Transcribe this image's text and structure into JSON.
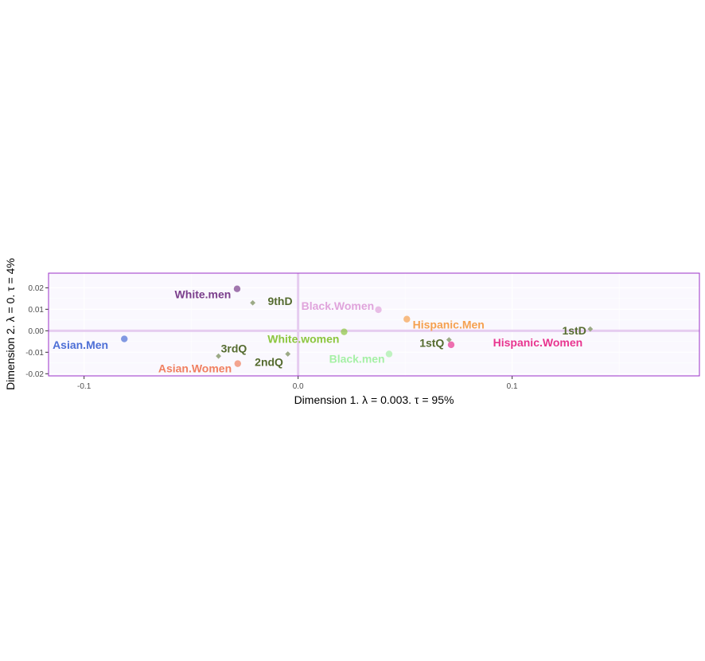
{
  "chart_data": {
    "type": "scatter",
    "title": "",
    "xlabel": "Dimension 1.   λ = 0.003.  τ = 95%",
    "ylabel": "Dimension 2.   λ = 0.  τ = 4%",
    "xlim": [
      -0.1166,
      0.1875
    ],
    "ylim": [
      -0.021,
      0.0268
    ],
    "x_ticks": [
      -0.1,
      0.0,
      0.1
    ],
    "x_tick_labels": [
      "-0.1",
      "0.0",
      "0.1"
    ],
    "y_ticks": [
      -0.02,
      -0.01,
      0.0,
      0.01,
      0.02
    ],
    "y_tick_labels": [
      "-0.02",
      "-0.01",
      "0.00",
      "0.01",
      "0.02"
    ],
    "grid": true,
    "legend": "none",
    "colors": {
      "panel_border": "#9b30c8",
      "panel_fill": "#faf8fe",
      "grid": "#ffffff",
      "zero_line": "#e6ccf0"
    },
    "series": [
      {
        "kind": "group",
        "points": [
          {
            "label": "White.men",
            "x": -0.0285,
            "y": 0.0195,
            "color": "#7b3f8c",
            "label_dx": -0.016,
            "label_dy": -0.0025
          },
          {
            "label": "Black.Women",
            "x": 0.0375,
            "y": 0.0098,
            "color": "#e0a4dc",
            "label_dx": -0.019,
            "label_dy": 0.0018
          },
          {
            "label": "Hispanic.Men",
            "x": 0.0508,
            "y": 0.0054,
            "color": "#f5a150",
            "label_dx": 0.0195,
            "label_dy": -0.0025
          },
          {
            "label": "Asian.Men",
            "x": -0.0812,
            "y": -0.0038,
            "color": "#4d6fd6",
            "label_dx": -0.0205,
            "label_dy": -0.0028
          },
          {
            "label": "White.women",
            "x": 0.0215,
            "y": -0.0005,
            "color": "#8cc63f",
            "label_dx": -0.019,
            "label_dy": -0.0032
          },
          {
            "label": "Hispanic.Women",
            "x": 0.0715,
            "y": -0.0065,
            "color": "#e8358f",
            "label_dx": 0.0405,
            "label_dy": 0.0011
          },
          {
            "label": "Asian.Women",
            "x": -0.0282,
            "y": -0.0153,
            "color": "#f08060",
            "label_dx": -0.02,
            "label_dy": -0.0022
          },
          {
            "label": "Black.men",
            "x": 0.0425,
            "y": -0.0108,
            "color": "#a6f0a6",
            "label_dx": -0.015,
            "label_dy": -0.0022
          }
        ]
      },
      {
        "kind": "quantile",
        "color": "#556b2f",
        "marker_color": "#9caa86",
        "points": [
          {
            "label": "9thD",
            "x": -0.0212,
            "y": 0.013,
            "label_dx": 0.0128,
            "label_dy": 0.0008
          },
          {
            "label": "1stD",
            "x": 0.1365,
            "y": 0.0008,
            "label_dx": -0.0075,
            "label_dy": -0.0006
          },
          {
            "label": "3rdQ",
            "x": -0.0372,
            "y": -0.0118,
            "label_dx": 0.0072,
            "label_dy": 0.0035
          },
          {
            "label": "2ndQ",
            "x": -0.0048,
            "y": -0.0108,
            "label_dx": -0.0088,
            "label_dy": -0.0037
          },
          {
            "label": "1stQ",
            "x": 0.0705,
            "y": -0.0042,
            "label_dx": -0.008,
            "label_dy": -0.0015
          }
        ]
      }
    ]
  }
}
